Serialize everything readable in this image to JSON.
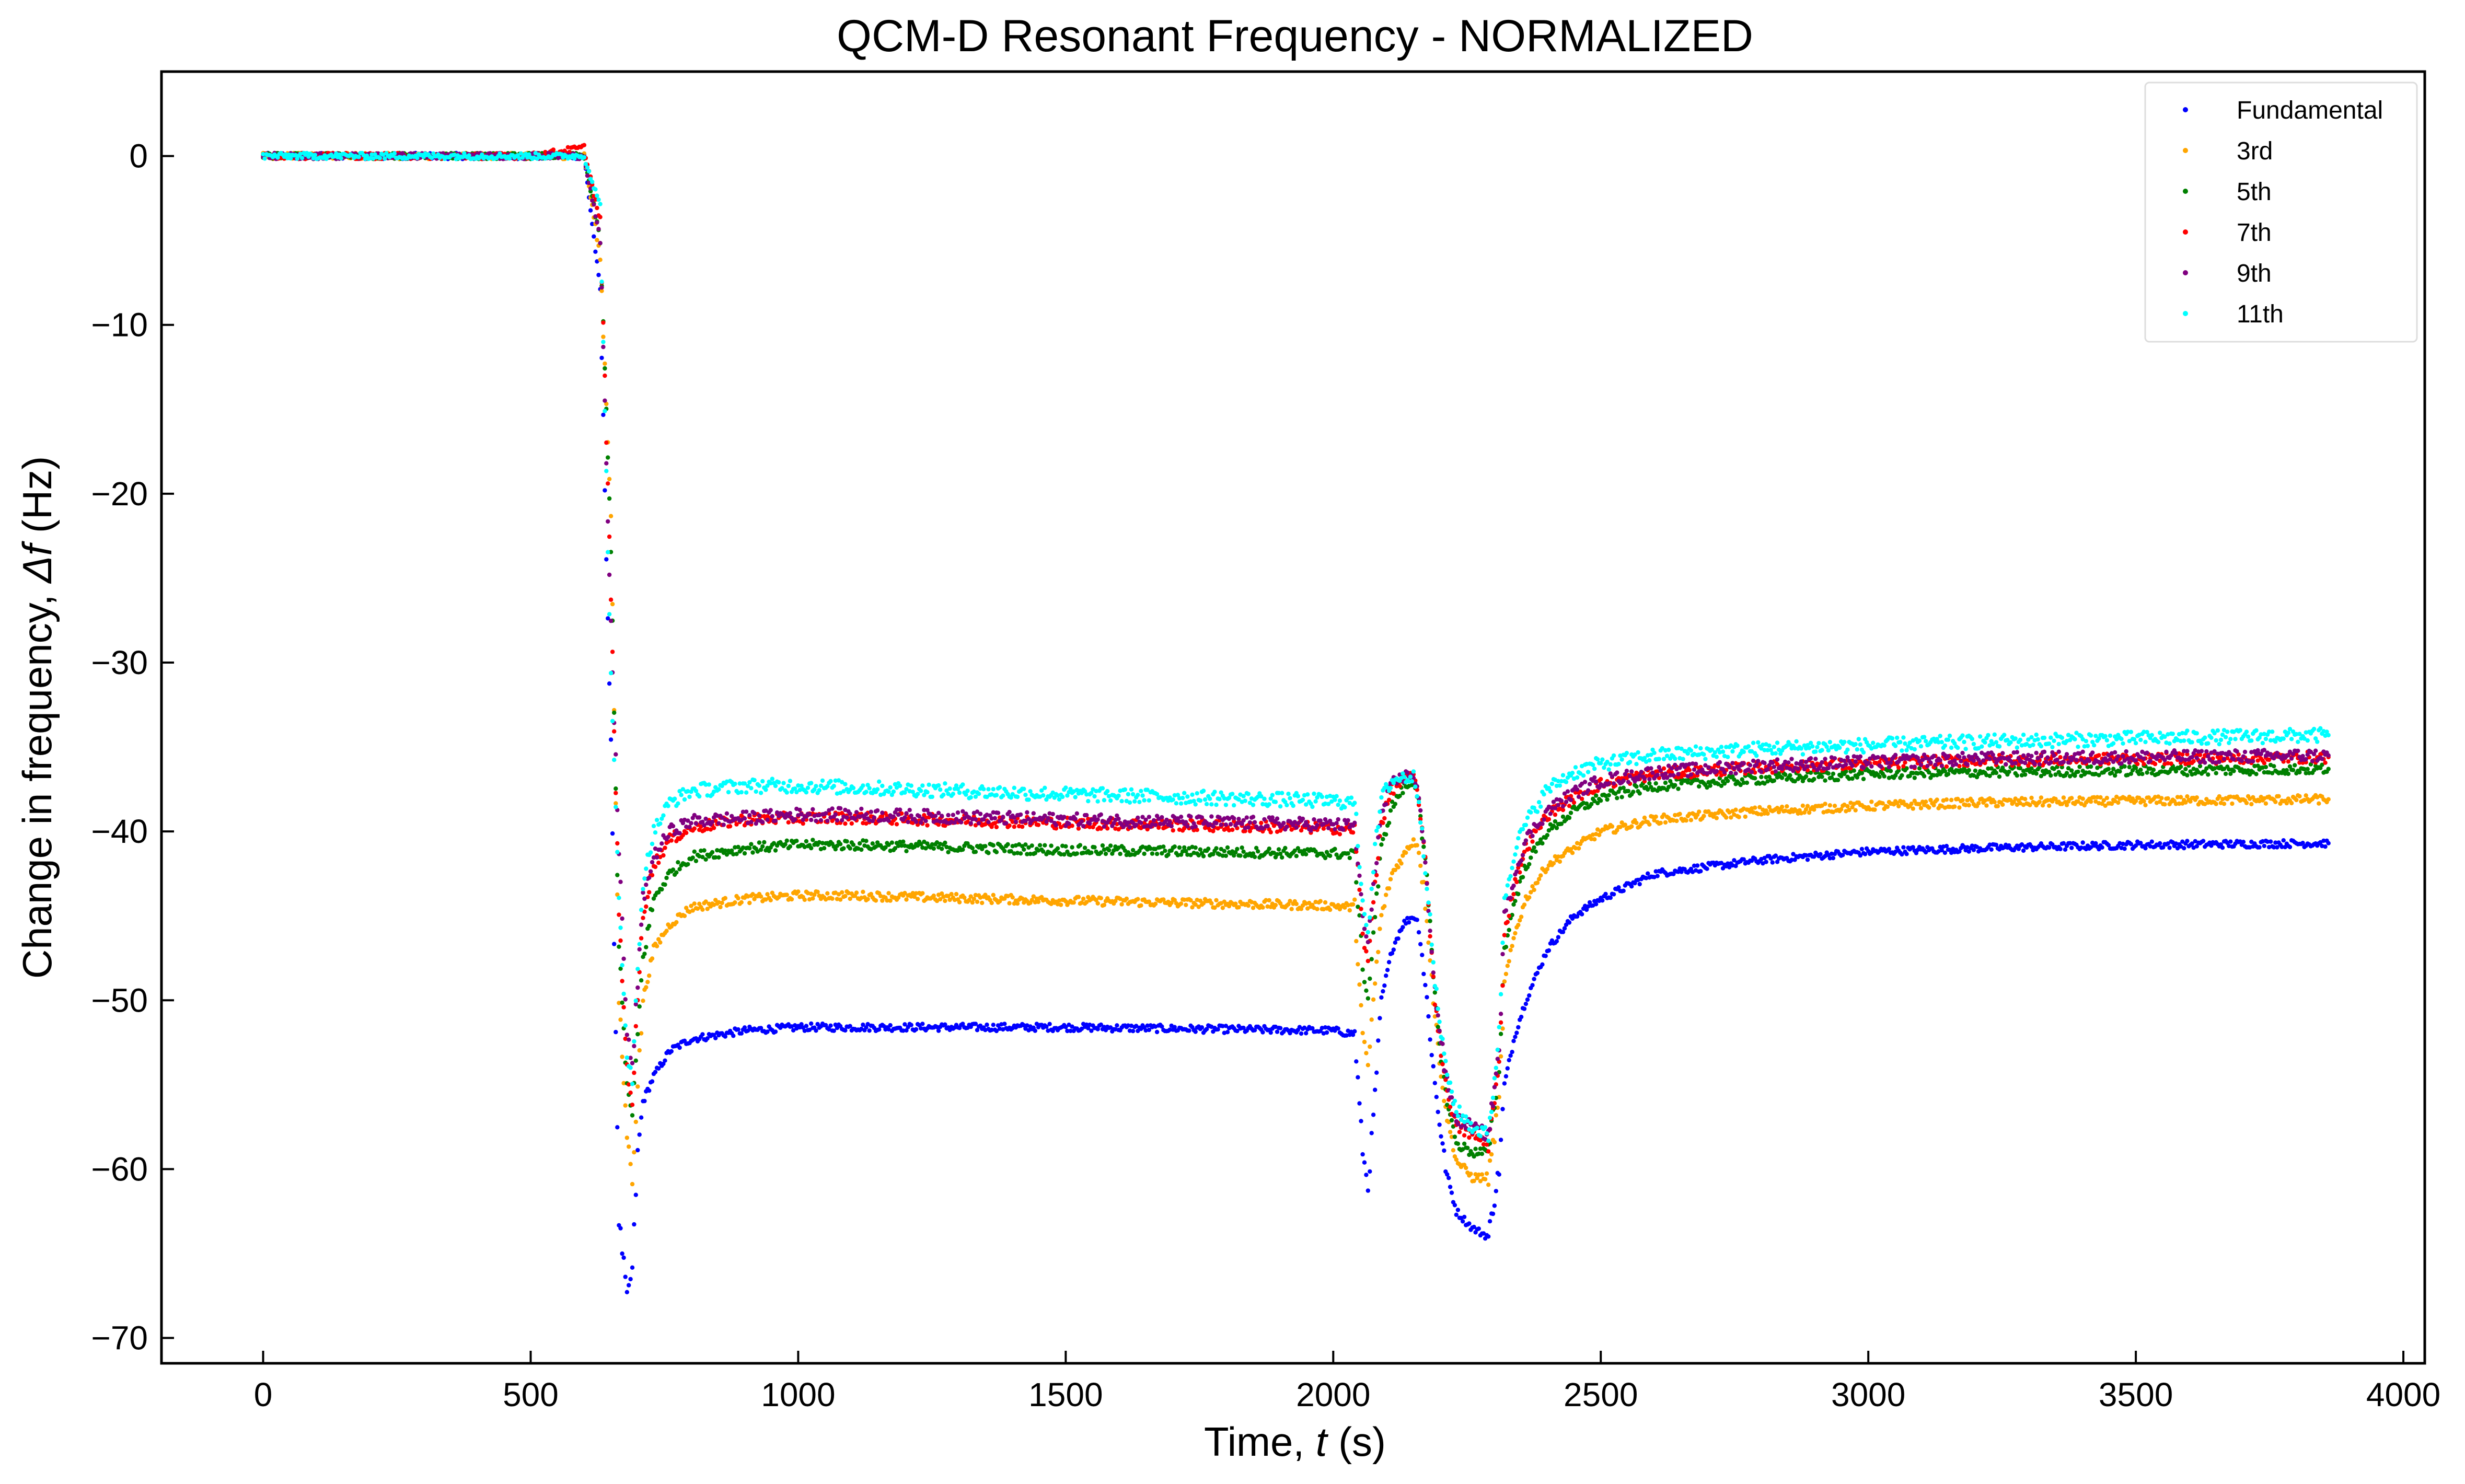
{
  "chart_data": {
    "type": "scatter",
    "title": "QCM-D Resonant Frequency - NORMALIZED",
    "xlabel": {
      "prefix": "Time, ",
      "var": "t",
      "suffix": " (s)"
    },
    "ylabel": {
      "prefix": "Change in frequency, ",
      "var": "Δf",
      "suffix": " (Hz)"
    },
    "xlim": [
      -190,
      4040
    ],
    "ylim": [
      -71.5,
      5
    ],
    "xticks": [
      0,
      500,
      1000,
      1500,
      2000,
      2500,
      3000,
      3500,
      4000
    ],
    "yticks": [
      0,
      -10,
      -20,
      -30,
      -40,
      -50,
      -60,
      -70
    ],
    "xtick_labels": [
      "0",
      "500",
      "1000",
      "1500",
      "2000",
      "2500",
      "3000",
      "3500",
      "4000"
    ],
    "ytick_labels": [
      "0",
      "−10",
      "−20",
      "−30",
      "−40",
      "−50",
      "−60",
      "−70"
    ],
    "grid": false,
    "legend_position": "top-right",
    "series": [
      {
        "name": "Fundamental",
        "color": "#0000ff",
        "x": [
          0,
          100,
          200,
          300,
          400,
          500,
          600,
          630,
          650,
          665,
          680,
          690,
          700,
          710,
          730,
          760,
          800,
          900,
          1000,
          1100,
          1500,
          2000,
          2040,
          2055,
          2065,
          2075,
          2090,
          2110,
          2130,
          2150,
          2160,
          2175,
          2190,
          2210,
          2230,
          2260,
          2290,
          2310,
          2320,
          2340,
          2360,
          2400,
          2450,
          2500,
          2600,
          2800,
          3000,
          3200,
          3500,
          3860
        ],
        "y": [
          0,
          0,
          0,
          0,
          0,
          0,
          0,
          -8,
          -35,
          -63,
          -67.5,
          -66,
          -59,
          -56,
          -54.5,
          -53,
          -52.3,
          -51.8,
          -51.6,
          -51.6,
          -51.6,
          -51.8,
          -52,
          -59,
          -61,
          -57,
          -50,
          -47,
          -45.5,
          -45,
          -45.5,
          -50,
          -55,
          -60,
          -62.5,
          -63.5,
          -64,
          -60,
          -55,
          -52,
          -50,
          -47,
          -45,
          -44,
          -42.5,
          -41.7,
          -41.2,
          -41,
          -40.8,
          -40.7
        ]
      },
      {
        "name": "3rd",
        "color": "#ffa500",
        "x": [
          0,
          100,
          200,
          300,
          400,
          500,
          600,
          630,
          650,
          665,
          680,
          690,
          700,
          710,
          730,
          760,
          800,
          900,
          1000,
          1100,
          1500,
          2000,
          2040,
          2055,
          2065,
          2075,
          2090,
          2110,
          2130,
          2150,
          2160,
          2175,
          2190,
          2210,
          2230,
          2260,
          2290,
          2310,
          2320,
          2340,
          2360,
          2400,
          2450,
          2500,
          2600,
          2800,
          3000,
          3200,
          3500,
          3860
        ],
        "y": [
          0,
          0,
          0,
          0,
          0,
          0,
          0,
          -6,
          -21,
          -50,
          -58,
          -60.5,
          -55,
          -50,
          -47,
          -45.5,
          -44.5,
          -44,
          -43.8,
          -43.8,
          -44.1,
          -44.4,
          -44.5,
          -52,
          -54,
          -50,
          -45,
          -42.5,
          -41.5,
          -40.5,
          -41,
          -45,
          -51,
          -56.5,
          -59.5,
          -60.5,
          -60.5,
          -56,
          -49,
          -46,
          -44,
          -42,
          -41,
          -40,
          -39.3,
          -38.8,
          -38.5,
          -38.3,
          -38.2,
          -38.1
        ]
      },
      {
        "name": "5th",
        "color": "#008000",
        "x": [
          0,
          100,
          200,
          300,
          400,
          500,
          600,
          630,
          650,
          665,
          680,
          690,
          700,
          710,
          730,
          760,
          800,
          900,
          1000,
          1100,
          1500,
          2000,
          2040,
          2055,
          2065,
          2075,
          2090,
          2110,
          2130,
          2150,
          2160,
          2175,
          2190,
          2210,
          2230,
          2260,
          2290,
          2310,
          2320,
          2340,
          2360,
          2400,
          2450,
          2500,
          2600,
          2800,
          3000,
          3200,
          3500,
          3860
        ],
        "y": [
          0,
          0,
          0,
          0,
          0,
          0,
          0,
          -5,
          -23,
          -47,
          -55,
          -57,
          -52,
          -47.5,
          -44,
          -42.5,
          -41.5,
          -41,
          -40.8,
          -40.8,
          -41.1,
          -41.3,
          -41.4,
          -48,
          -50,
          -46,
          -41,
          -38.5,
          -37.5,
          -37,
          -38,
          -43,
          -50,
          -55.5,
          -58.5,
          -59,
          -59,
          -54,
          -47,
          -44,
          -42,
          -40,
          -38.8,
          -38,
          -37.3,
          -36.9,
          -36.6,
          -36.5,
          -36.4,
          -36.3
        ]
      },
      {
        "name": "7th",
        "color": "#ff0000",
        "x": [
          0,
          100,
          200,
          300,
          400,
          500,
          600,
          630,
          650,
          665,
          680,
          690,
          700,
          710,
          730,
          760,
          800,
          900,
          1000,
          1100,
          1500,
          2000,
          2040,
          2055,
          2065,
          2075,
          2090,
          2110,
          2130,
          2150,
          2160,
          2175,
          2190,
          2210,
          2230,
          2260,
          2290,
          2310,
          2320,
          2340,
          2360,
          2400,
          2450,
          2500,
          2600,
          2800,
          3000,
          3200,
          3500,
          3860
        ],
        "y": [
          0,
          0,
          0,
          0,
          0,
          0,
          0.5,
          -4,
          -26,
          -45,
          -54,
          -56,
          -50,
          -45,
          -42,
          -40.5,
          -39.8,
          -39.3,
          -39.2,
          -39.2,
          -39.5,
          -39.8,
          -39.9,
          -46,
          -48,
          -44,
          -39.5,
          -37.5,
          -37,
          -36.8,
          -38,
          -43,
          -50,
          -55,
          -57.5,
          -58,
          -58.5,
          -54,
          -46,
          -43,
          -41,
          -39,
          -38,
          -37.2,
          -36.6,
          -36.2,
          -36,
          -35.8,
          -35.7,
          -35.6
        ]
      },
      {
        "name": "9th",
        "color": "#800080",
        "x": [
          0,
          100,
          200,
          300,
          400,
          500,
          600,
          630,
          650,
          665,
          680,
          690,
          700,
          710,
          730,
          760,
          800,
          900,
          1000,
          1100,
          1500,
          2000,
          2040,
          2055,
          2065,
          2075,
          2090,
          2110,
          2130,
          2150,
          2160,
          2175,
          2190,
          2210,
          2230,
          2260,
          2290,
          2310,
          2320,
          2340,
          2360,
          2400,
          2450,
          2500,
          2600,
          2800,
          3000,
          3200,
          3500,
          3860
        ],
        "y": [
          0,
          0,
          0,
          0,
          0,
          0,
          0,
          -5,
          -28,
          -41,
          -52,
          -54,
          -49,
          -44,
          -41.5,
          -40,
          -39.4,
          -39.2,
          -39,
          -39,
          -39.3,
          -39.6,
          -39.7,
          -45,
          -47,
          -43,
          -39,
          -37.2,
          -36.8,
          -36.6,
          -38,
          -43,
          -49.5,
          -54.5,
          -57,
          -57.5,
          -58,
          -53,
          -45,
          -42.5,
          -40.5,
          -38.8,
          -37.7,
          -37,
          -36.5,
          -36.1,
          -35.9,
          -35.7,
          -35.6,
          -35.5
        ]
      },
      {
        "name": "11th",
        "color": "#00ffff",
        "x": [
          0,
          100,
          200,
          300,
          400,
          500,
          600,
          630,
          650,
          665,
          680,
          690,
          700,
          710,
          730,
          760,
          800,
          900,
          1000,
          1100,
          1500,
          2000,
          2040,
          2055,
          2065,
          2075,
          2090,
          2110,
          2130,
          2150,
          2160,
          2175,
          2190,
          2210,
          2230,
          2260,
          2290,
          2310,
          2320,
          2340,
          2360,
          2400,
          2450,
          2500,
          2600,
          2800,
          3000,
          3200,
          3500,
          3860
        ],
        "y": [
          0,
          0,
          0,
          0,
          0,
          0,
          0,
          -3,
          -31,
          -44,
          -53,
          -55,
          -48,
          -43,
          -40,
          -38.3,
          -37.6,
          -37.3,
          -37.3,
          -37.4,
          -37.8,
          -38.2,
          -38.3,
          -44,
          -46,
          -42,
          -38,
          -37,
          -36.8,
          -36.8,
          -38,
          -43,
          -49,
          -54,
          -56.5,
          -57.5,
          -58,
          -52,
          -44,
          -41,
          -39.5,
          -37.5,
          -36.5,
          -36,
          -35.5,
          -35.1,
          -34.9,
          -34.7,
          -34.5,
          -34.3
        ]
      }
    ]
  }
}
